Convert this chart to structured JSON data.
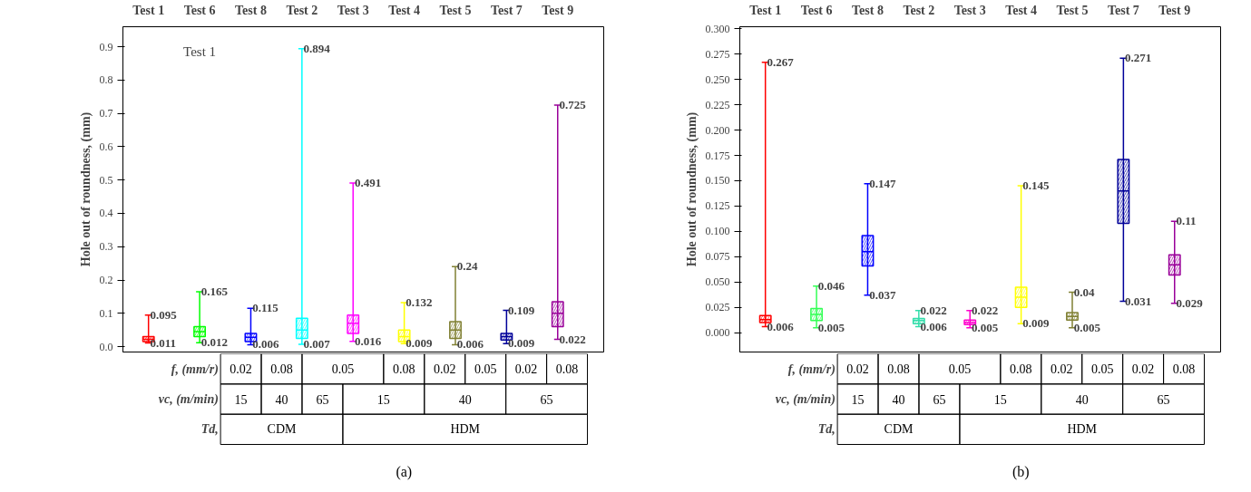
{
  "chart_data": [
    {
      "type": "box",
      "categories": [
        "Test 1",
        "Test 6",
        "Test 8",
        "Test 2",
        "Test 3",
        "Test 4",
        "Test 5",
        "Test 7",
        "Test 9"
      ],
      "colors": [
        "#ff0000",
        "#00ff00",
        "#0000ff",
        "#00ffff",
        "#ff00ff",
        "#ffff00",
        "#808033",
        "#000099",
        "#990099"
      ],
      "boxes": [
        {
          "low": 0.011,
          "q1": 0.015,
          "median": 0.022,
          "q3": 0.03,
          "high": 0.095
        },
        {
          "low": 0.012,
          "q1": 0.03,
          "median": 0.045,
          "q3": 0.06,
          "high": 0.165
        },
        {
          "low": 0.006,
          "q1": 0.015,
          "median": 0.028,
          "q3": 0.04,
          "high": 0.115
        },
        {
          "low": 0.007,
          "q1": 0.025,
          "median": 0.05,
          "q3": 0.085,
          "high": 0.894
        },
        {
          "low": 0.016,
          "q1": 0.04,
          "median": 0.07,
          "q3": 0.095,
          "high": 0.491
        },
        {
          "low": 0.009,
          "q1": 0.015,
          "median": 0.03,
          "q3": 0.05,
          "high": 0.132
        },
        {
          "low": 0.006,
          "q1": 0.025,
          "median": 0.05,
          "q3": 0.075,
          "high": 0.24
        },
        {
          "low": 0.009,
          "q1": 0.02,
          "median": 0.03,
          "q3": 0.04,
          "high": 0.109
        },
        {
          "low": 0.022,
          "q1": 0.06,
          "median": 0.1,
          "q3": 0.135,
          "high": 0.725
        }
      ],
      "ylim": [
        -0.016,
        0.96
      ],
      "yticks": [
        {
          "value": 0,
          "label": "0.0"
        },
        0.1,
        0.2,
        0.3,
        0.4,
        0.5,
        0.6,
        0.7,
        0.8,
        0.9
      ],
      "ylabel": "Hole out of roundness, (mm)",
      "annotations": [
        {
          "text": "0.095",
          "x": "Test 1",
          "y": 0.095
        },
        {
          "text": "0.011",
          "x": "Test 1",
          "y": 0.011
        },
        {
          "text": "0.165",
          "x": "Test 6",
          "y": 0.165
        },
        {
          "text": "0.012",
          "x": "Test 6",
          "y": 0.012
        },
        {
          "text": "0.115",
          "x": "Test 8",
          "y": 0.115
        },
        {
          "text": "0.006",
          "x": "Test 8",
          "y": 0.006
        },
        {
          "text": "0.894",
          "x": "Test 2",
          "y": 0.894
        },
        {
          "text": "0.007",
          "x": "Test 2",
          "y": 0.007
        },
        {
          "text": "0.491",
          "x": "Test 3",
          "y": 0.491
        },
        {
          "text": "0.016",
          "x": "Test 3",
          "y": 0.016
        },
        {
          "text": "0.132",
          "x": "Test 4",
          "y": 0.132
        },
        {
          "text": "0.009",
          "x": "Test 4",
          "y": 0.009
        },
        {
          "text": "0.24",
          "x": "Test 5",
          "y": 0.24
        },
        {
          "text": "0.006",
          "x": "Test 5",
          "y": 0.006
        },
        {
          "text": "0.109",
          "x": "Test 7",
          "y": 0.109
        },
        {
          "text": "0.009",
          "x": "Test 7",
          "y": 0.009
        },
        {
          "text": "0.725",
          "x": "Test 9",
          "y": 0.725
        },
        {
          "text": "0.022",
          "x": "Test 9",
          "y": 0.022
        },
        "Test 1",
        "f, (mm/r)",
        "0.02",
        "0.08",
        "0.05",
        "0.08",
        "0.02",
        "0.05",
        "0.02",
        "0.08",
        "vc, (m/min)",
        "15",
        "40",
        "65",
        "15",
        "40",
        "65",
        "Td,",
        "CDM",
        "HDM",
        "(a)"
      ]
    },
    {
      "type": "box",
      "categories": [
        "Test 1",
        "Test 6",
        "Test 8",
        "Test 2",
        "Test 3",
        "Test 4",
        "Test 5",
        "Test 7",
        "Test 9"
      ],
      "colors": [
        "#ff0000",
        "#33ff55",
        "#0000ff",
        "#33ddaa",
        "#ff00cc",
        "#ffff00",
        "#808033",
        "#000099",
        "#990099"
      ],
      "boxes": [
        {
          "low": 0.006,
          "q1": 0.01,
          "median": 0.013,
          "q3": 0.017,
          "high": 0.267
        },
        {
          "low": 0.005,
          "q1": 0.012,
          "median": 0.018,
          "q3": 0.024,
          "high": 0.046
        },
        {
          "low": 0.037,
          "q1": 0.066,
          "median": 0.08,
          "q3": 0.096,
          "high": 0.147
        },
        {
          "low": 0.006,
          "q1": 0.009,
          "median": 0.012,
          "q3": 0.014,
          "high": 0.022
        },
        {
          "low": 0.005,
          "q1": 0.008,
          "median": 0.01,
          "q3": 0.0125,
          "high": 0.022
        },
        {
          "low": 0.009,
          "q1": 0.025,
          "median": 0.035,
          "q3": 0.045,
          "high": 0.145
        },
        {
          "low": 0.005,
          "q1": 0.0125,
          "median": 0.016,
          "q3": 0.02,
          "high": 0.04
        },
        {
          "low": 0.031,
          "q1": 0.108,
          "median": 0.14,
          "q3": 0.171,
          "high": 0.271
        },
        {
          "low": 0.029,
          "q1": 0.057,
          "median": 0.067,
          "q3": 0.077,
          "high": 0.11
        }
      ],
      "ylim": [
        -0.019,
        0.302
      ],
      "yticks": [
        {
          "value": 0,
          "label": "0.000"
        },
        {
          "value": 0.025,
          "label": "0.025"
        },
        {
          "value": 0.05,
          "label": "0.050"
        },
        {
          "value": 0.075,
          "label": "0.075"
        },
        {
          "value": 0.1,
          "label": "0.100"
        },
        {
          "value": 0.125,
          "label": "0.125"
        },
        {
          "value": 0.15,
          "label": "0.150"
        },
        {
          "value": 0.175,
          "label": "0.175"
        },
        {
          "value": 0.2,
          "label": "0.200"
        },
        {
          "value": 0.225,
          "label": "0.225"
        },
        {
          "value": 0.25,
          "label": "0.250"
        },
        {
          "value": 0.275,
          "label": "0.275"
        },
        {
          "value": 0.3,
          "label": "0.300"
        }
      ],
      "ylabel": "Hole out of roundness, (mm)",
      "annotations": [
        {
          "text": "0.267",
          "x": "Test 1",
          "y": 0.267
        },
        {
          "text": "0.006",
          "x": "Test 1",
          "y": 0.006
        },
        {
          "text": "0.046",
          "x": "Test 6",
          "y": 0.046
        },
        {
          "text": "0.005",
          "x": "Test 6",
          "y": 0.005
        },
        {
          "text": "0.147",
          "x": "Test 8",
          "y": 0.147
        },
        {
          "text": "0.037",
          "x": "Test 8",
          "y": 0.037
        },
        {
          "text": "0.022",
          "x": "Test 2",
          "y": 0.022
        },
        {
          "text": "0.006",
          "x": "Test 2",
          "y": 0.006
        },
        {
          "text": "0.022",
          "x": "Test 3",
          "y": 0.022
        },
        {
          "text": "0.005",
          "x": "Test 3",
          "y": 0.005
        },
        {
          "text": "0.145",
          "x": "Test 4",
          "y": 0.145
        },
        {
          "text": "0.009",
          "x": "Test 4",
          "y": 0.009
        },
        {
          "text": "0.04",
          "x": "Test 5",
          "y": 0.04
        },
        {
          "text": "0.005",
          "x": "Test 5",
          "y": 0.005
        },
        {
          "text": "0.271",
          "x": "Test 7",
          "y": 0.271
        },
        {
          "text": "0.031",
          "x": "Test 7",
          "y": 0.031
        },
        {
          "text": "0.11",
          "x": "Test 9",
          "y": 0.11
        },
        {
          "text": "0.029",
          "x": "Test 9",
          "y": 0.029
        },
        "f, (mm/r)",
        "0.02",
        "0.08",
        "0.05",
        "0.08",
        "0.02",
        "0.05",
        "0.02",
        "0.08",
        "vc, (m/min)",
        "15",
        "40",
        "65",
        "15",
        "40",
        "65",
        "Td,",
        "CDM",
        "HDM",
        "(b)"
      ]
    }
  ]
}
